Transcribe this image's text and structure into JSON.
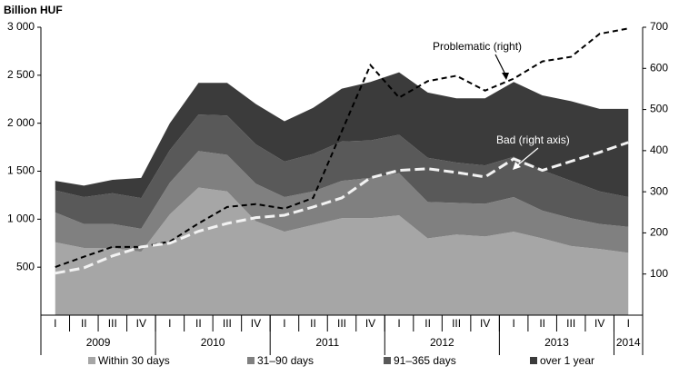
{
  "chart_data": {
    "type": "stacked_area",
    "y_axis_title": "Billion HUF",
    "categories": [
      "I",
      "II",
      "III",
      "IV",
      "I",
      "II",
      "III",
      "IV",
      "I",
      "II",
      "III",
      "IV",
      "I",
      "II",
      "III",
      "IV",
      "I",
      "II",
      "III",
      "IV",
      "I"
    ],
    "years": [
      "2009",
      "2010",
      "2011",
      "2012",
      "2013",
      "2014"
    ],
    "series": [
      {
        "name": "Within 30 days",
        "color": "#a6a6a6",
        "values": [
          760,
          700,
          700,
          660,
          1050,
          1330,
          1290,
          980,
          870,
          940,
          1010,
          1010,
          1040,
          800,
          840,
          820,
          870,
          800,
          720,
          690,
          650
        ]
      },
      {
        "name": "31–90 days",
        "color": "#808080",
        "values": [
          310,
          250,
          250,
          240,
          330,
          380,
          380,
          390,
          360,
          350,
          390,
          420,
          440,
          380,
          330,
          340,
          360,
          290,
          290,
          260,
          270
        ]
      },
      {
        "name": "91–365 days",
        "color": "#595959",
        "values": [
          230,
          280,
          320,
          320,
          340,
          380,
          410,
          410,
          370,
          390,
          410,
          390,
          400,
          460,
          420,
          400,
          420,
          420,
          390,
          340,
          310
        ]
      },
      {
        "name": "over 1 year",
        "color": "#3b3b3b",
        "values": [
          100,
          120,
          140,
          210,
          280,
          330,
          340,
          420,
          420,
          480,
          550,
          610,
          650,
          680,
          670,
          700,
          780,
          780,
          830,
          860,
          920
        ]
      }
    ],
    "lines": [
      {
        "name": "Problematic (right)",
        "color": "#000000",
        "axis": "y2",
        "values": [
          117,
          142,
          166,
          166,
          179,
          223,
          263,
          270,
          259,
          285,
          447,
          608,
          529,
          569,
          582,
          546,
          575,
          617,
          628,
          684,
          697
        ]
      },
      {
        "name": "Bad (right axis)",
        "color": "#f2f2f2",
        "axis": "y2",
        "values": [
          102,
          115,
          144,
          166,
          175,
          204,
          223,
          237,
          243,
          263,
          285,
          334,
          352,
          356,
          347,
          336,
          380,
          352,
          374,
          396,
          420
        ]
      }
    ],
    "ylim": [
      0,
      3000
    ],
    "yticks": [
      500,
      {
        "value": 1000,
        "label": "1 000"
      },
      {
        "value": 1500,
        "label": "1 500"
      },
      {
        "value": 2000,
        "label": "2 000"
      },
      {
        "value": 2500,
        "label": "2 500"
      },
      {
        "value": 3000,
        "label": "3 000"
      }
    ],
    "y2lim": [
      0,
      700
    ],
    "y2ticks": [
      100,
      200,
      300,
      400,
      500,
      600,
      700
    ],
    "legend": "bottom"
  }
}
